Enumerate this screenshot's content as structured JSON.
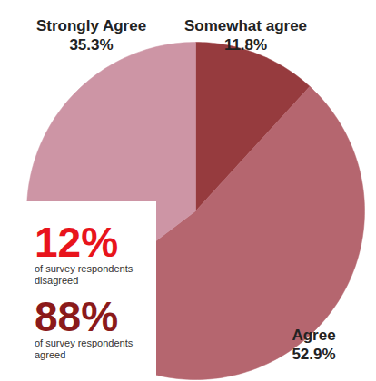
{
  "chart_data": {
    "type": "pie",
    "categories": [
      "Somewhat agree",
      "Agree",
      "Strongly Agree"
    ],
    "values": [
      11.8,
      52.9,
      35.3
    ],
    "value_labels": [
      "11.8%",
      "52.9%",
      "35.3%"
    ],
    "colors": [
      "#963b3e",
      "#b5666f",
      "#cd95a5"
    ],
    "data_labels": true,
    "annotations": [
      {
        "label": "12%",
        "text": "of survey respondents disagreed",
        "color": "#e8141c"
      },
      {
        "label": "88%",
        "text": "of survey respondents agreed",
        "color": "#8b1a1a"
      }
    ]
  }
}
